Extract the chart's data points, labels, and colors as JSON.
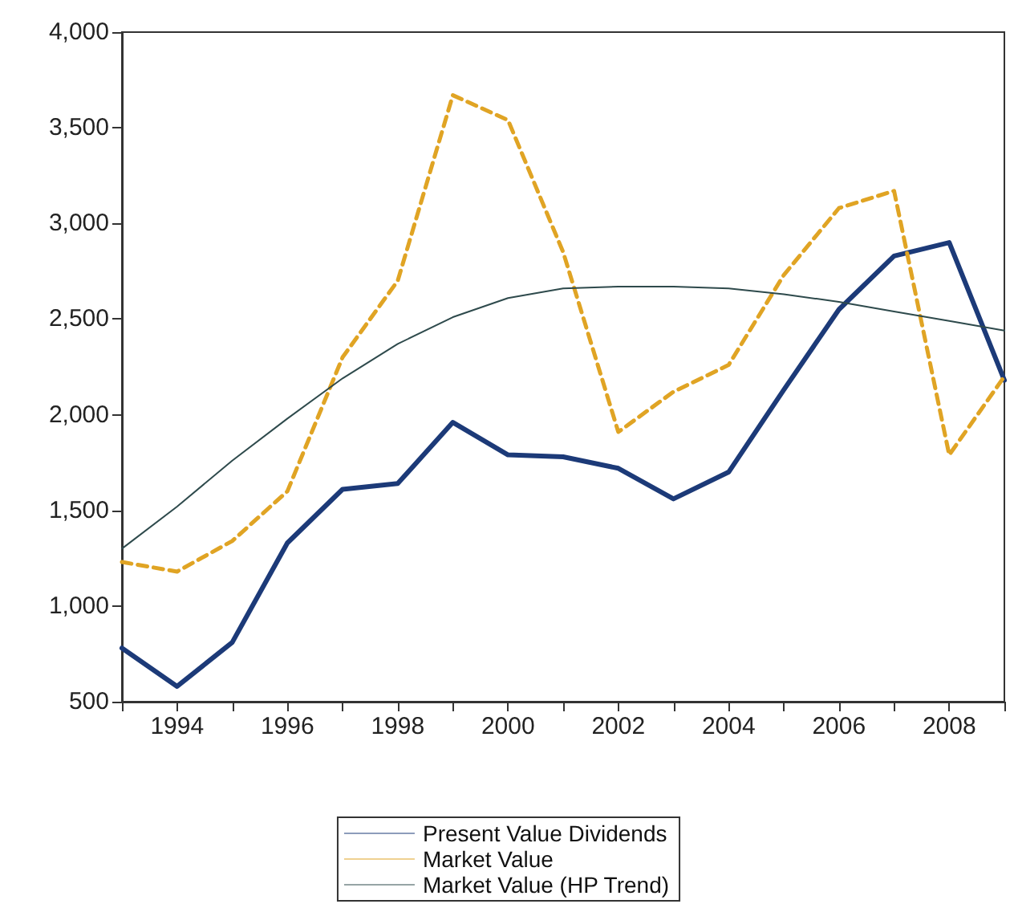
{
  "chart_data": {
    "type": "line",
    "x": [
      1993,
      1994,
      1995,
      1996,
      1997,
      1998,
      1999,
      2000,
      2001,
      2002,
      2003,
      2004,
      2005,
      2006,
      2007,
      2008,
      2009
    ],
    "series": [
      {
        "name": "Present Value Dividends",
        "color": "#1c3a78",
        "line_style": "solid",
        "values": [
          780,
          580,
          810,
          1330,
          1610,
          1640,
          1960,
          1790,
          1780,
          1720,
          1560,
          1700,
          2130,
          2550,
          2830,
          2900,
          2180
        ]
      },
      {
        "name": "Market Value",
        "color": "#e0a424",
        "line_style": "dashed",
        "values": [
          1230,
          1180,
          1340,
          1600,
          2300,
          2700,
          3670,
          3540,
          2850,
          1910,
          2120,
          2260,
          2730,
          3080,
          3170,
          1790,
          2200
        ]
      },
      {
        "name": "Market Value (HP Trend)",
        "color": "#2e4a4c",
        "line_style": "solid",
        "values": [
          1300,
          1520,
          1760,
          1980,
          2190,
          2370,
          2510,
          2610,
          2660,
          2670,
          2670,
          2660,
          2630,
          2590,
          2540,
          2490,
          2440
        ]
      }
    ],
    "xlim": [
      1993,
      2009
    ],
    "xticks": [
      {
        "value": 1993,
        "label": null
      },
      1994,
      {
        "value": 1995,
        "label": null
      },
      1996,
      {
        "value": 1997,
        "label": null
      },
      1998,
      {
        "value": 1999,
        "label": null
      },
      2000,
      {
        "value": 2001,
        "label": null
      },
      2002,
      {
        "value": 2003,
        "label": null
      },
      2004,
      {
        "value": 2005,
        "label": null
      },
      2006,
      {
        "value": 2007,
        "label": null
      },
      2008,
      {
        "value": 2009,
        "label": null
      }
    ],
    "ylim": [
      500,
      4000
    ],
    "yticks": [
      500,
      {
        "value": 1000,
        "label": "1,000"
      },
      {
        "value": 1500,
        "label": "1,500"
      },
      {
        "value": 2000,
        "label": "2,000"
      },
      {
        "value": 2500,
        "label": "2,500"
      },
      {
        "value": 3000,
        "label": "3,000"
      },
      {
        "value": 3500,
        "label": "3,500"
      },
      {
        "value": 4000,
        "label": "4,000"
      }
    ],
    "grid": false,
    "legend": "bottom",
    "marker": "none"
  }
}
